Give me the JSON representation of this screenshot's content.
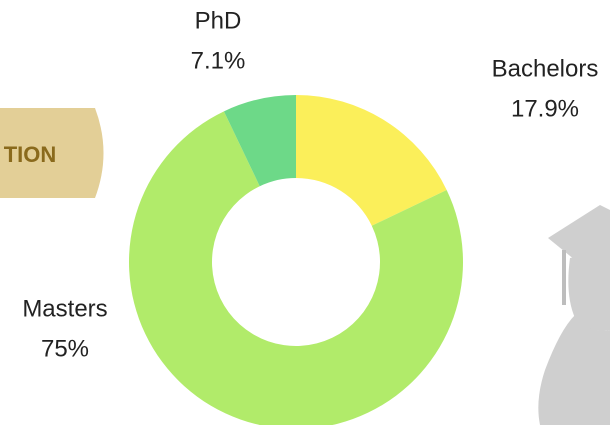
{
  "chart_data": {
    "type": "donut",
    "banner": "TION",
    "categories": [
      "Bachelors",
      "Masters",
      "PhD"
    ],
    "values": [
      17.9,
      75,
      7.1
    ],
    "value_labels": [
      "17.9%",
      "75%",
      "7.1%"
    ],
    "colors": [
      "#fbef5a",
      "#b1eb6a",
      "#6dd988"
    ]
  }
}
